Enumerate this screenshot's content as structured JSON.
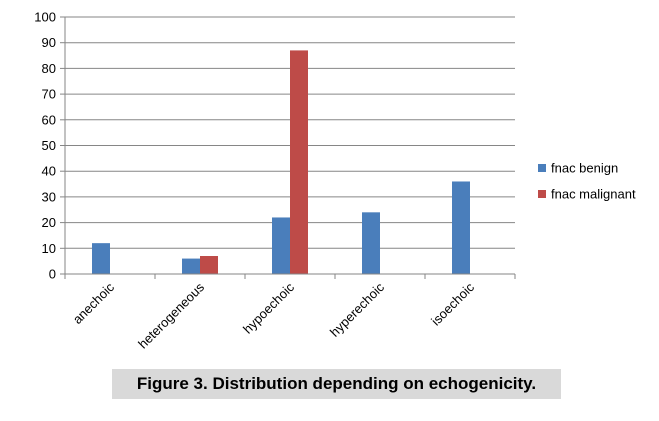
{
  "chart_data": {
    "type": "bar",
    "title": "",
    "xlabel": "",
    "ylabel": "",
    "categories": [
      "anechoic",
      "heterogeneous",
      "hypoechoic",
      "hyperechoic",
      "isoechoic"
    ],
    "series": [
      {
        "name": "fnac benign",
        "color": "#4a7ebb",
        "values": [
          12,
          6,
          22,
          24,
          36
        ]
      },
      {
        "name": "fnac malignant",
        "color": "#be4b48",
        "values": [
          0,
          7,
          87,
          0,
          0
        ]
      }
    ],
    "ylim": [
      0,
      100
    ],
    "yticks": [
      0,
      10,
      20,
      30,
      40,
      50,
      60,
      70,
      80,
      90,
      100
    ],
    "grid": true,
    "legend_position": "right"
  },
  "caption": "Figure 3. Distribution depending on echogenicity."
}
